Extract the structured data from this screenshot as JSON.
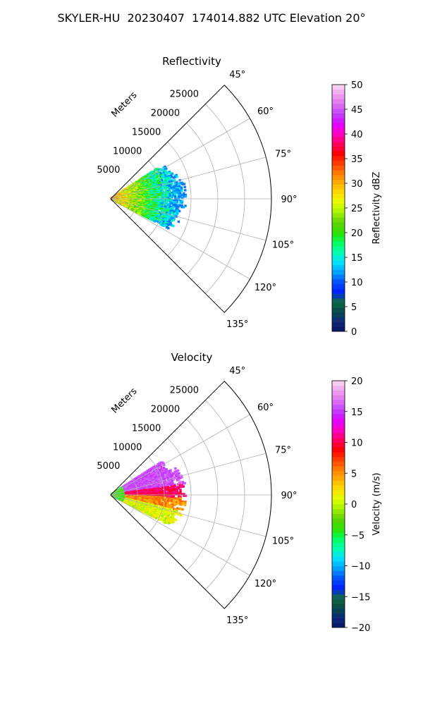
{
  "figure": {
    "title": "SKYLER-HU  20230407  174014.882 UTC Elevation 20°"
  },
  "chart_data": [
    {
      "type": "heatmap",
      "subtype": "polar-sector",
      "title": "Reflectivity",
      "radial_label": "Meters",
      "radial_ticks": [
        "5000",
        "10000",
        "15000",
        "20000",
        "25000"
      ],
      "radial_tick_values": [
        5000,
        10000,
        15000,
        20000,
        25000
      ],
      "range_max": 30000,
      "azimuth_ticks": [
        "45°",
        "60°",
        "75°",
        "90°",
        "105°",
        "120°",
        "135°"
      ],
      "azimuth_tick_values": [
        45,
        60,
        75,
        90,
        105,
        120,
        135
      ],
      "azimuth_range": [
        45,
        135
      ],
      "grid": true,
      "colorbar": {
        "label": "Reflectivity dBZ",
        "min": 0,
        "max": 50,
        "ticks": [
          "0",
          "5",
          "10",
          "15",
          "20",
          "25",
          "30",
          "35",
          "40",
          "45",
          "50"
        ],
        "tick_values": [
          0,
          5,
          10,
          15,
          20,
          25,
          30,
          35,
          40,
          45,
          50
        ]
      },
      "echo_region": {
        "azimuth_from": 57,
        "azimuth_to": 118,
        "range_max_m": 14500
      },
      "colors": {
        "stops": [
          "#0b1560",
          "#0c2a7a",
          "#0a4a4a",
          "#0f6a40",
          "#0020ff",
          "#0050ff",
          "#00a0ff",
          "#00e0ff",
          "#00ffb0",
          "#00ff60",
          "#30e000",
          "#60d000",
          "#a0f000",
          "#e0ff00",
          "#ffe000",
          "#ffb000",
          "#ff8000",
          "#ff4000",
          "#ff0000",
          "#ff0060",
          "#ff00c0",
          "#e000ff",
          "#c040ff",
          "#e070f0",
          "#f0a0f0",
          "#fad8f5"
        ]
      }
    },
    {
      "type": "heatmap",
      "subtype": "polar-sector",
      "title": "Velocity",
      "radial_label": "Meters",
      "radial_ticks": [
        "5000",
        "10000",
        "15000",
        "20000",
        "25000"
      ],
      "radial_tick_values": [
        5000,
        10000,
        15000,
        20000,
        25000
      ],
      "range_max": 30000,
      "azimuth_ticks": [
        "45°",
        "60°",
        "75°",
        "90°",
        "105°",
        "120°",
        "135°"
      ],
      "azimuth_tick_values": [
        45,
        60,
        75,
        90,
        105,
        120,
        135
      ],
      "azimuth_range": [
        45,
        135
      ],
      "grid": true,
      "colorbar": {
        "label": "Velocity (m/s)",
        "min": -20,
        "max": 20,
        "ticks": [
          "−20",
          "−15",
          "−10",
          "−5",
          "0",
          "5",
          "10",
          "15",
          "20"
        ],
        "tick_values": [
          -20,
          -15,
          -10,
          -5,
          0,
          5,
          10,
          15,
          20
        ]
      },
      "echo_region": {
        "azimuth_from": 57,
        "azimuth_to": 118,
        "range_max_m": 14500
      },
      "colors": {
        "stops": [
          "#0b1560",
          "#0c2a7a",
          "#0a4a4a",
          "#0f6a40",
          "#0020ff",
          "#0050ff",
          "#00a0ff",
          "#00e0ff",
          "#00ffb0",
          "#00ff60",
          "#30e000",
          "#60d000",
          "#a0f000",
          "#e0ff00",
          "#ffe000",
          "#ffb000",
          "#ff8000",
          "#ff4000",
          "#ff0000",
          "#ff0060",
          "#ff00c0",
          "#e000ff",
          "#c040ff",
          "#e070f0",
          "#f0a0f0",
          "#fad8f5"
        ]
      }
    }
  ]
}
